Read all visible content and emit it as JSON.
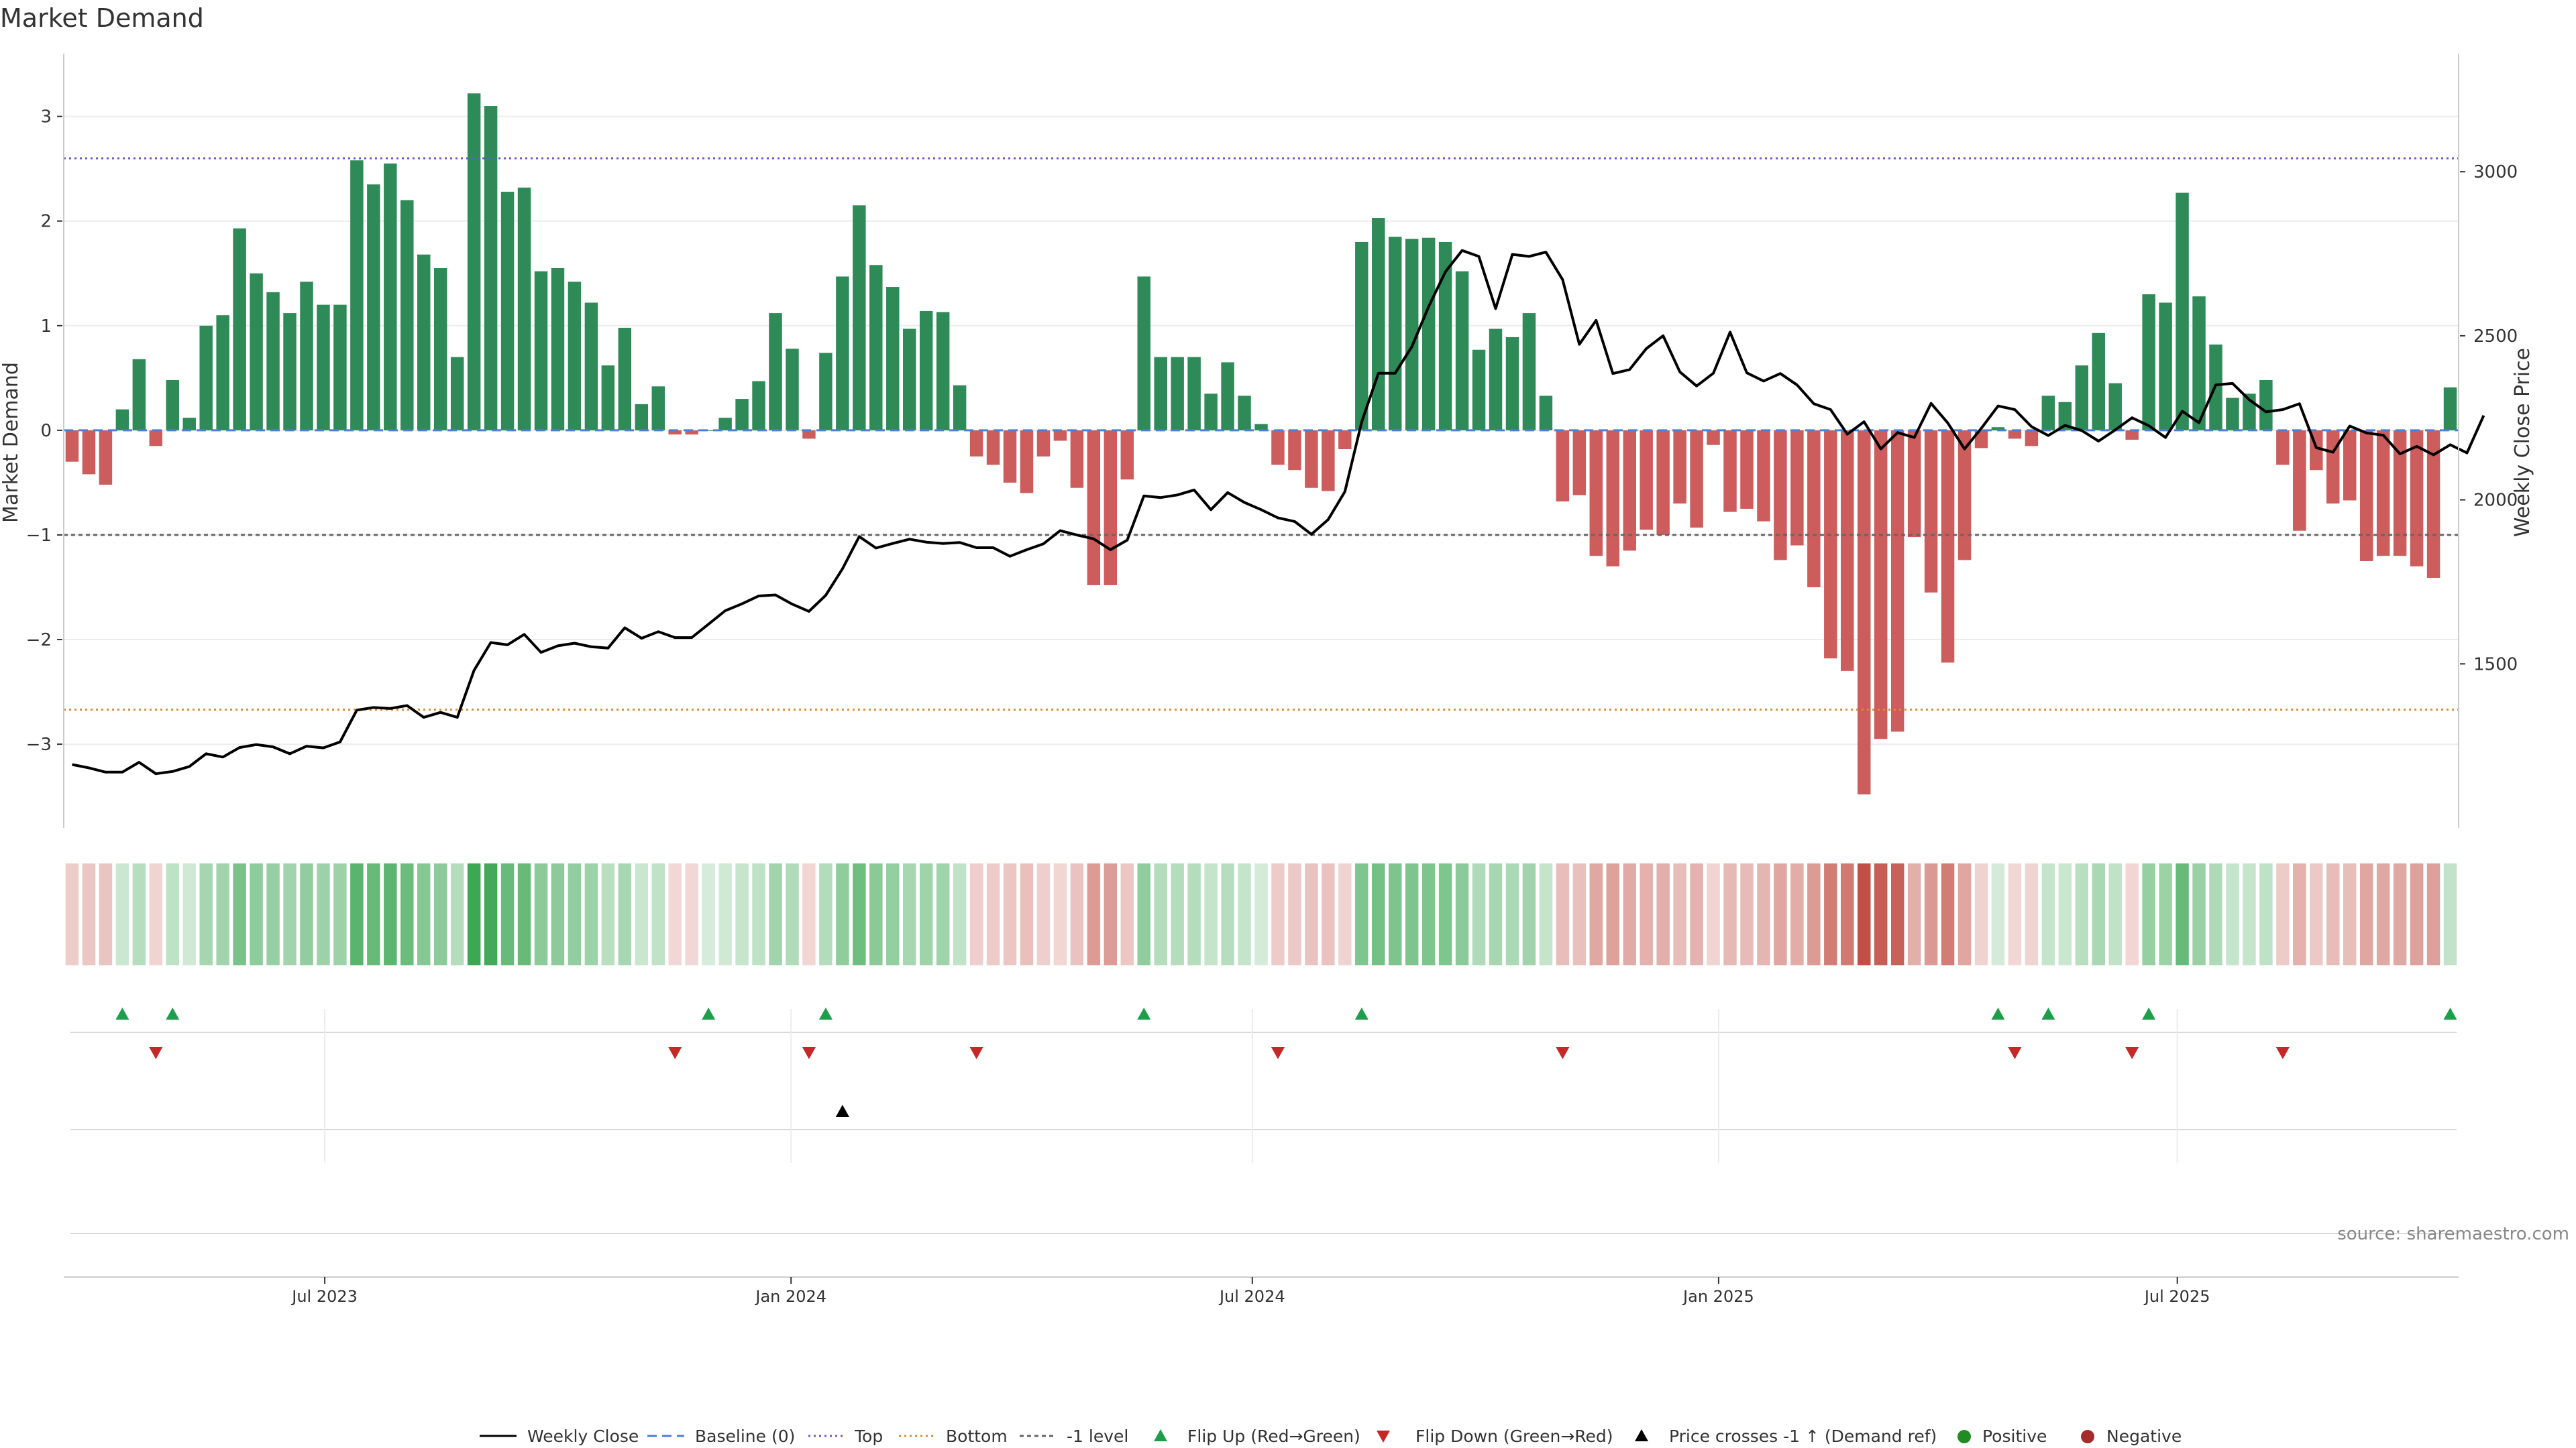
{
  "chart_data": {
    "type": "bar",
    "title": "Market Demand",
    "ylabel": "Market Demand",
    "y2label": "Weekly Close Price",
    "ylim": [
      -3.8,
      3.6
    ],
    "y2lim": [
      1000,
      3360
    ],
    "yticks": [
      -3,
      -2,
      -1,
      0,
      1,
      2,
      3
    ],
    "y2ticks": [
      1500,
      2000,
      2500,
      3000
    ],
    "x_start": "2023-03-20",
    "x_end": "2025-10-20",
    "date_ticks": [
      {
        "label": "Jul 2023",
        "date": "2023-07-01"
      },
      {
        "label": "Jan 2024",
        "date": "2024-01-01"
      },
      {
        "label": "Jul 2024",
        "date": "2024-07-01"
      },
      {
        "label": "Jan 2025",
        "date": "2025-01-01"
      },
      {
        "label": "Jul 2025",
        "date": "2025-07-01"
      }
    ],
    "top_level": 2.6,
    "bottom_level": -2.67,
    "minus_one_level": -1,
    "demand": [
      -0.3,
      -0.42,
      -0.52,
      0.2,
      0.68,
      -0.15,
      0.48,
      0.12,
      1.0,
      1.1,
      1.93,
      1.5,
      1.32,
      1.12,
      1.42,
      1.2,
      1.2,
      2.58,
      2.35,
      2.55,
      2.2,
      1.68,
      1.55,
      0.7,
      3.22,
      3.1,
      2.28,
      2.32,
      1.52,
      1.55,
      1.42,
      1.22,
      0.62,
      0.98,
      0.25,
      0.42,
      -0.04,
      -0.04,
      0.0,
      0.12,
      0.3,
      0.47,
      1.12,
      0.78,
      -0.08,
      0.74,
      1.47,
      2.15,
      1.58,
      1.37,
      0.97,
      1.14,
      1.13,
      0.43,
      -0.25,
      -0.33,
      -0.5,
      -0.6,
      -0.25,
      -0.1,
      -0.55,
      -1.48,
      -1.48,
      -0.47,
      1.47,
      0.7,
      0.7,
      0.7,
      0.35,
      0.65,
      0.33,
      0.06,
      -0.33,
      -0.38,
      -0.55,
      -0.58,
      -0.18,
      1.8,
      2.03,
      1.85,
      1.83,
      1.84,
      1.8,
      1.52,
      0.77,
      0.97,
      0.89,
      1.12,
      0.33,
      -0.68,
      -0.62,
      -1.2,
      -1.3,
      -1.15,
      -0.95,
      -1.0,
      -0.7,
      -0.93,
      -0.14,
      -0.78,
      -0.75,
      -0.87,
      -1.24,
      -1.1,
      -1.5,
      -2.18,
      -2.3,
      -3.48,
      -2.95,
      -2.88,
      -1.02,
      -1.55,
      -2.22,
      -1.24,
      -0.17,
      0.03,
      -0.08,
      -0.15,
      0.33,
      0.27,
      0.62,
      0.93,
      0.45,
      -0.09,
      1.3,
      1.22,
      2.27,
      1.28,
      0.82,
      0.31,
      0.35,
      0.48,
      -0.33,
      -0.96,
      -0.38,
      -0.7,
      -0.67,
      -1.25,
      -1.2,
      -1.2,
      -1.3,
      -1.41,
      0.41
    ],
    "weekly_close": [
      1193,
      1183,
      1170,
      1170,
      1200,
      1165,
      1172,
      1187,
      1226,
      1216,
      1245,
      1254,
      1247,
      1226,
      1249,
      1244,
      1262,
      1359,
      1367,
      1364,
      1373,
      1337,
      1352,
      1337,
      1480,
      1565,
      1558,
      1590,
      1535,
      1555,
      1563,
      1552,
      1548,
      1610,
      1578,
      1598,
      1580,
      1580,
      1621,
      1662,
      1683,
      1707,
      1710,
      1682,
      1660,
      1709,
      1790,
      1888,
      1853,
      1867,
      1880,
      1871,
      1867,
      1870,
      1854,
      1854,
      1828,
      1848,
      1866,
      1906,
      1893,
      1881,
      1848,
      1877,
      2012,
      2007,
      2015,
      2030,
      1970,
      2022,
      1992,
      1970,
      1945,
      1934,
      1895,
      1940,
      2025,
      2237,
      2386,
      2386,
      2467,
      2589,
      2695,
      2760,
      2742,
      2583,
      2748,
      2742,
      2755,
      2671,
      2474,
      2547,
      2385,
      2397,
      2461,
      2500,
      2390,
      2347,
      2386,
      2511,
      2387,
      2362,
      2385,
      2350,
      2293,
      2275,
      2200,
      2238,
      2155,
      2205,
      2190,
      2294,
      2234,
      2155,
      2218,
      2286,
      2275,
      2223,
      2196,
      2227,
      2211,
      2179,
      2213,
      2250,
      2226,
      2190,
      2270,
      2235,
      2350,
      2355,
      2305,
      2268,
      2275,
      2293,
      2159,
      2145,
      2225,
      2204,
      2197,
      2140,
      2163,
      2137,
      2168,
      2143,
      2257
    ]
  },
  "legend": {
    "weekly_close": "Weekly Close",
    "baseline": "Baseline (0)",
    "top": "Top",
    "bottom": "Bottom",
    "minus_one": "-1 level",
    "flip_up": "Flip Up (Red→Green)",
    "flip_down": "Flip Down (Green→Red)",
    "price_cross": "Price crosses -1 ↑ (Demand ref)",
    "positive": "Positive",
    "negative": "Negative"
  },
  "source": "source: sharemaestro.com",
  "colors": {
    "positive_bar": "#2e8b57",
    "negative_bar": "#cd5c5c",
    "price_line": "#000000",
    "top_line": "#6a5acd",
    "bottom_line": "#e08a2e",
    "minus_one_line": "#666666",
    "baseline": "#4a7fd4",
    "flip_up": "#1e9e4a",
    "flip_down": "#c62828",
    "positive_dot": "#228b22",
    "negative_dot": "#a52a2a"
  }
}
